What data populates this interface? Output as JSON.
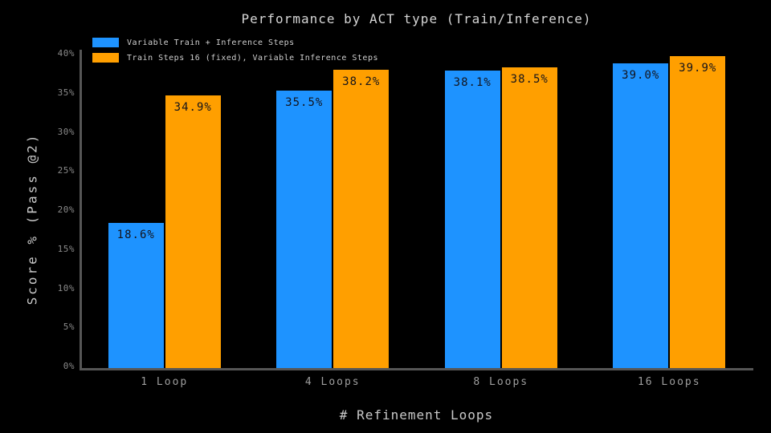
{
  "page": {
    "background": "#000000"
  },
  "chart_data": {
    "type": "bar",
    "title": "Performance by ACT type (Train/Inference)",
    "xlabel": "# Refinement Loops",
    "ylabel": "Score % (Pass @2)",
    "categories": [
      "1 Loop",
      "4 Loops",
      "8 Loops",
      "16 Loops"
    ],
    "series": [
      {
        "name": "Variable Train + Inference Steps",
        "color": "#1E93FF",
        "values": [
          18.6,
          35.5,
          38.1,
          39.0
        ]
      },
      {
        "name": "Train Steps 16 (fixed), Variable Inference Steps",
        "color": "#FF9F00",
        "values": [
          34.9,
          38.2,
          38.5,
          39.9
        ]
      }
    ],
    "value_labels": [
      [
        "18.6%",
        "35.5%",
        "38.1%",
        "39.0%"
      ],
      [
        "34.9%",
        "38.2%",
        "38.5%",
        "39.9%"
      ]
    ],
    "ytick_values": [
      0,
      5,
      10,
      15,
      20,
      25,
      30,
      35,
      40
    ],
    "ytick_labels": [
      "0%",
      "5%",
      "10%",
      "15%",
      "20%",
      "25%",
      "30%",
      "35%",
      "40%"
    ],
    "ylim": [
      0,
      41
    ],
    "grid": false,
    "legend_position": "top-left",
    "value_label_color": "#14141c",
    "axis_color": "#565656",
    "background_color": "#000000"
  }
}
